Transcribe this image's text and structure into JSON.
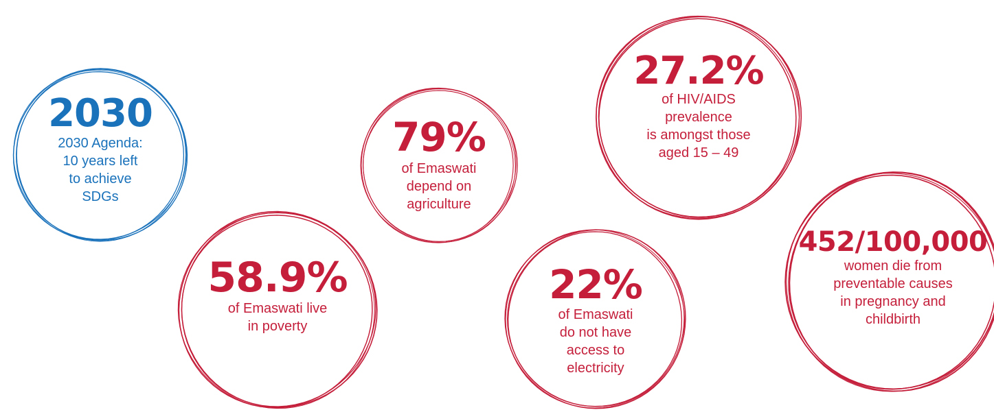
{
  "colors": {
    "blue": "#1a72bb",
    "red": "#c41e3a"
  },
  "circles": [
    {
      "id": "agenda",
      "value": "2030",
      "lines": "2030 Agenda:\n10 years left\nto achieve\nSDGs",
      "color": "blue"
    },
    {
      "id": "poverty",
      "value": "58.9%",
      "lines": "of Emaswati live\nin poverty",
      "color": "red"
    },
    {
      "id": "agriculture",
      "value": "79%",
      "lines": "of Emaswati\ndepend on\nagriculture",
      "color": "red"
    },
    {
      "id": "hiv",
      "value": "27.2%",
      "lines": "of HIV/AIDS\nprevalence\nis amongst those\naged 15 – 49",
      "color": "red"
    },
    {
      "id": "electricity",
      "value": "22%",
      "lines": "of Emaswati\ndo not have\naccess to\nelectricity",
      "color": "red"
    },
    {
      "id": "maternal",
      "value": "452/100,000",
      "lines": "women die from\npreventable causes\nin pregnancy and\nchildbirth",
      "color": "red"
    }
  ]
}
